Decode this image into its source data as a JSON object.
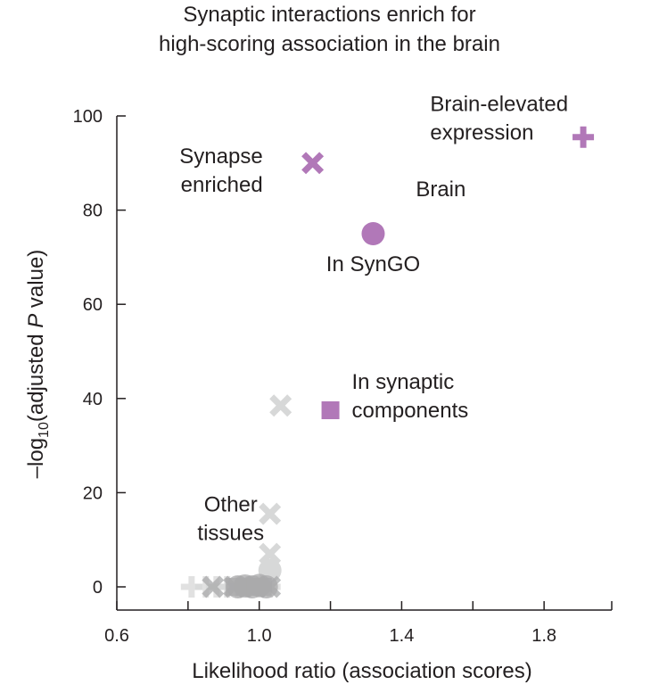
{
  "title_lines": [
    "Synaptic interactions enrich for",
    "high-scoring association in the brain"
  ],
  "colors": {
    "brain": "#b178b8",
    "other": "#d7d8d8",
    "other_cluster": "#a9aaab",
    "axis": "#231f20",
    "brain_label": "#a371ab",
    "other_label": "#9d9e9f"
  },
  "chart_data": {
    "type": "scatter",
    "title": "Synaptic interactions enrich for high-scoring association in the brain",
    "xlabel": "Likelihood ratio (association scores)",
    "ylabel": "-log10(adjusted P value)",
    "ylabel_parts": {
      "pre": "–log",
      "sub": "10",
      "mid": "(adjusted ",
      "italic": "P",
      "post": " value)"
    },
    "xlim": [
      0.6,
      1.99
    ],
    "ylim": [
      -5,
      100
    ],
    "xticks": [
      0.6,
      0.8,
      1.0,
      1.2,
      1.4,
      1.6,
      1.8
    ],
    "xtick_labels": [
      "0.6",
      "",
      "1.0",
      "",
      "1.4",
      "",
      "1.8"
    ],
    "yticks": [
      0,
      20,
      40,
      60,
      80,
      100
    ],
    "ytick_labels": [
      "0",
      "20",
      "40",
      "60",
      "80",
      "100"
    ],
    "series": [
      {
        "name": "Brain",
        "color": "#b178b8",
        "points": [
          {
            "x": 1.15,
            "y": 90,
            "marker": "x",
            "label": "Synapse enriched"
          },
          {
            "x": 1.32,
            "y": 75,
            "marker": "circle",
            "label": "In SynGO"
          },
          {
            "x": 1.2,
            "y": 37.5,
            "marker": "square",
            "label": "In synaptic components"
          },
          {
            "x": 1.91,
            "y": 95.5,
            "marker": "plus",
            "label": "Brain-elevated expression"
          }
        ]
      },
      {
        "name": "Other tissues",
        "color": "#d7d8d8",
        "points": [
          {
            "x": 1.06,
            "y": 38.5,
            "marker": "x"
          },
          {
            "x": 1.03,
            "y": 15.5,
            "marker": "x"
          },
          {
            "x": 1.03,
            "y": 7,
            "marker": "x"
          },
          {
            "x": 1.03,
            "y": 3.5,
            "marker": "circle"
          },
          {
            "x": 0.81,
            "y": 0,
            "marker": "plus"
          },
          {
            "x": 0.85,
            "y": 0,
            "marker": "plus"
          },
          {
            "x": 0.88,
            "y": 0,
            "marker": "plus"
          },
          {
            "x": 0.91,
            "y": 0,
            "marker": "plus"
          },
          {
            "x": 0.94,
            "y": 0,
            "marker": "plus"
          },
          {
            "x": 0.97,
            "y": 0,
            "marker": "plus"
          },
          {
            "x": 1.0,
            "y": 0,
            "marker": "plus"
          },
          {
            "x": 1.03,
            "y": 0,
            "marker": "plus"
          },
          {
            "x": 0.87,
            "y": 0,
            "marker": "x"
          },
          {
            "x": 0.93,
            "y": 0,
            "marker": "x"
          },
          {
            "x": 0.99,
            "y": 0,
            "marker": "x"
          },
          {
            "x": 1.03,
            "y": 0,
            "marker": "x"
          },
          {
            "x": 0.94,
            "y": 0,
            "marker": "circle"
          },
          {
            "x": 0.96,
            "y": 0.2,
            "marker": "circle"
          },
          {
            "x": 0.98,
            "y": 0,
            "marker": "circle"
          },
          {
            "x": 1.0,
            "y": 0.3,
            "marker": "circle"
          },
          {
            "x": 1.02,
            "y": 0,
            "marker": "circle"
          },
          {
            "x": 0.93,
            "y": 0,
            "marker": "square"
          },
          {
            "x": 0.96,
            "y": 0,
            "marker": "square"
          },
          {
            "x": 0.99,
            "y": 0,
            "marker": "square"
          },
          {
            "x": 1.01,
            "y": 0,
            "marker": "square"
          }
        ]
      }
    ],
    "annotations": [
      {
        "text_lines": [
          "Synapse",
          "enriched"
        ],
        "x": 1.01,
        "y": 90,
        "anchor": "end",
        "color": "#231f20"
      },
      {
        "text_lines": [
          "Brain-elevated",
          "expression"
        ],
        "x": 1.48,
        "y": 101,
        "anchor": "start",
        "color": "#231f20"
      },
      {
        "text_lines": [
          "In SynGO"
        ],
        "x": 1.32,
        "y": 67,
        "anchor": "middle",
        "color": "#231f20"
      },
      {
        "text_lines": [
          "In synaptic",
          "components"
        ],
        "x": 1.26,
        "y": 42,
        "anchor": "start",
        "color": "#231f20"
      },
      {
        "text_lines": [
          "Brain"
        ],
        "x": 1.51,
        "y": 83,
        "anchor": "middle",
        "color": "#a371ab"
      },
      {
        "text_lines": [
          "Other",
          "tissues"
        ],
        "x": 0.92,
        "y": 16,
        "anchor": "middle",
        "color": "#9d9e9f"
      }
    ]
  }
}
